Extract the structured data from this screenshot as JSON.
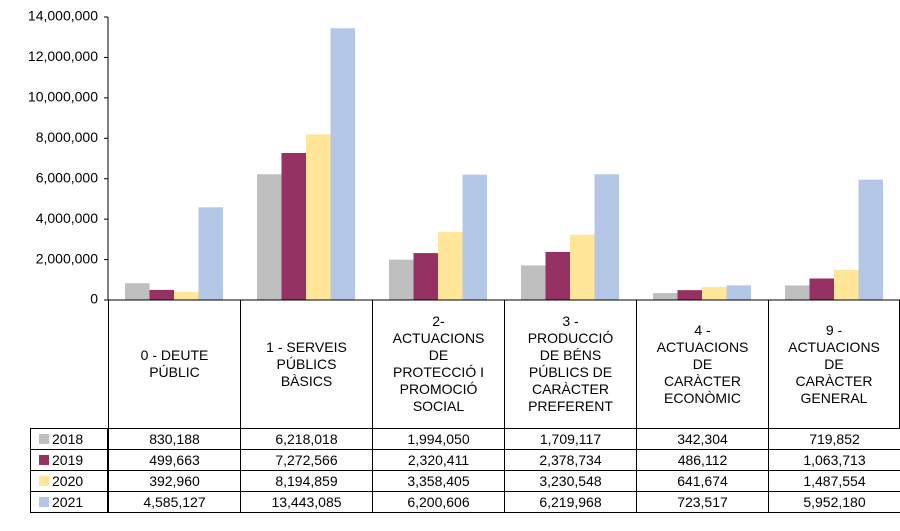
{
  "chart_data": {
    "type": "bar",
    "categories": [
      "0 - DEUTE PÚBLIC",
      "1 - SERVEIS PÚBLICS BÀSICS",
      "2- ACTUACIONS DE PROTECCIÓ I PROMOCIÓ SOCIAL",
      "3 - PRODUCCIÓ DE BÉNS PÚBLICS DE CARÀCTER PREFERENT",
      "4 - ACTUACIONS DE CARÀCTER ECONÒMIC",
      "9 - ACTUACIONS DE CARÀCTER GENERAL"
    ],
    "series": [
      {
        "name": "2018",
        "color": "#bfbfbf",
        "values": [
          830188,
          6218018,
          1994050,
          1709117,
          342304,
          719852
        ],
        "value_labels": [
          "830,188",
          "6,218,018",
          "1,994,050",
          "1,709,117",
          "342,304",
          "719,852"
        ]
      },
      {
        "name": "2019",
        "color": "#953163",
        "values": [
          499663,
          7272566,
          2320411,
          2378734,
          486112,
          1063713
        ],
        "value_labels": [
          "499,663",
          "7,272,566",
          "2,320,411",
          "2,378,734",
          "486,112",
          "1,063,713"
        ]
      },
      {
        "name": "2020",
        "color": "#ffe699",
        "values": [
          392960,
          8194859,
          3358405,
          3230548,
          641674,
          1487554
        ],
        "value_labels": [
          "392,960",
          "8,194,859",
          "3,358,405",
          "3,230,548",
          "641,674",
          "1,487,554"
        ]
      },
      {
        "name": "2021",
        "color": "#b4c7e7",
        "values": [
          4585127,
          13443085,
          6200606,
          6219968,
          723517,
          5952180
        ],
        "value_labels": [
          "4,585,127",
          "13,443,085",
          "6,200,606",
          "6,219,968",
          "723,517",
          "5,952,180"
        ]
      }
    ],
    "ylim": [
      0,
      14000000
    ],
    "yticks": [
      0,
      {
        "value": 2000000,
        "label": "2,000,000"
      },
      {
        "value": 4000000,
        "label": "4,000,000"
      },
      {
        "value": 6000000,
        "label": "6,000,000"
      },
      {
        "value": 8000000,
        "label": "8,000,000"
      },
      {
        "value": 10000000,
        "label": "10,000,000"
      },
      {
        "value": 12000000,
        "label": "12,000,000"
      },
      {
        "value": 14000000,
        "label": "14,000,000"
      }
    ],
    "grid": false
  }
}
